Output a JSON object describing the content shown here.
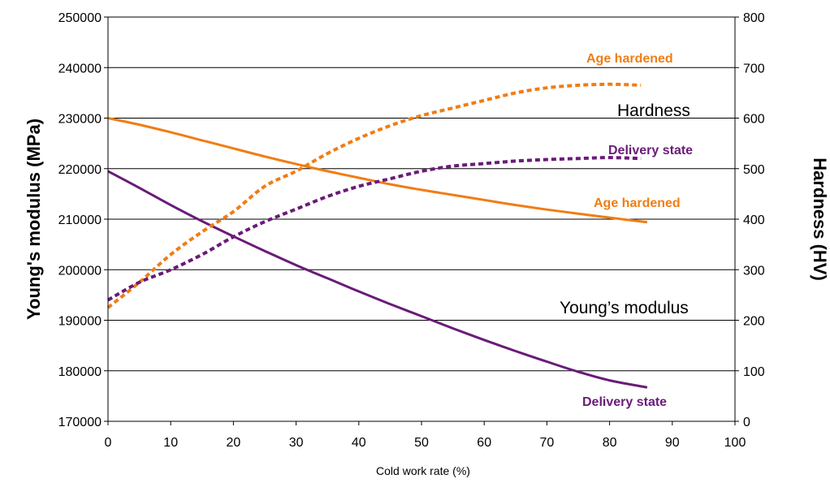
{
  "chart_data": {
    "type": "line",
    "title": "",
    "xlabel": "Cold work rate (%)",
    "ylabel": "Young's modulus (MPa)",
    "y2label": "Hardness (HV)",
    "xlim": [
      0,
      100
    ],
    "ylim": [
      170000,
      250000
    ],
    "y2lim": [
      0,
      800
    ],
    "x_ticks": [
      0,
      10,
      20,
      30,
      40,
      50,
      60,
      70,
      80,
      90,
      100
    ],
    "y_ticks": [
      170000,
      180000,
      190000,
      200000,
      210000,
      220000,
      230000,
      240000,
      250000
    ],
    "y2_ticks": [
      0,
      100,
      200,
      300,
      400,
      500,
      600,
      700,
      800
    ],
    "grid": "horizontal",
    "series": [
      {
        "key": "young_age",
        "axis": "left",
        "style": "solid",
        "color": "#f07d14",
        "x": [
          0,
          5,
          10,
          15,
          20,
          25,
          30,
          35,
          40,
          45,
          50,
          55,
          60,
          65,
          70,
          75,
          80,
          86
        ],
        "y": [
          230000,
          228700,
          227200,
          225600,
          224000,
          222400,
          220900,
          219500,
          218200,
          216900,
          215800,
          214800,
          213800,
          212800,
          211900,
          211100,
          210300,
          209400
        ]
      },
      {
        "key": "young_delivery",
        "axis": "left",
        "style": "solid",
        "color": "#6a1b78",
        "x": [
          0,
          5,
          10,
          15,
          20,
          25,
          30,
          35,
          40,
          45,
          50,
          55,
          60,
          65,
          70,
          75,
          80,
          86
        ],
        "y": [
          219500,
          216200,
          212800,
          209600,
          206600,
          203700,
          200900,
          198300,
          195700,
          193200,
          190800,
          188400,
          186100,
          183900,
          181800,
          179800,
          178100,
          176700
        ]
      },
      {
        "key": "hard_age",
        "axis": "right",
        "style": "dashed",
        "color": "#f07d14",
        "x": [
          0,
          5,
          10,
          15,
          20,
          25,
          30,
          35,
          40,
          45,
          50,
          55,
          60,
          65,
          70,
          75,
          80,
          85
        ],
        "y": [
          225,
          275,
          330,
          375,
          415,
          465,
          495,
          530,
          560,
          585,
          605,
          620,
          635,
          650,
          660,
          665,
          667,
          665
        ]
      },
      {
        "key": "hard_delivery",
        "axis": "right",
        "style": "dashed",
        "color": "#6a1b78",
        "x": [
          0,
          5,
          10,
          15,
          20,
          25,
          30,
          35,
          40,
          45,
          50,
          55,
          60,
          65,
          70,
          75,
          80,
          85
        ],
        "y": [
          240,
          275,
          300,
          330,
          365,
          395,
          420,
          445,
          465,
          480,
          495,
          505,
          510,
          515,
          518,
          520,
          522,
          520
        ]
      }
    ],
    "annotations": {
      "age_hardened_top": "Age hardened",
      "hardness": "Hardness",
      "delivery_state_top": "Delivery state",
      "age_hardened_mid": "Age  hardened",
      "youngs_modulus": "Young’s modulus",
      "delivery_state_bottom": "Delivery state"
    },
    "colors": {
      "orange": "#f07d14",
      "purple": "#6a1b78"
    }
  }
}
